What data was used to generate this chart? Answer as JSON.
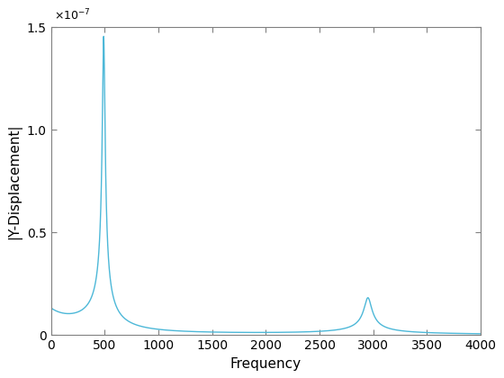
{
  "xlabel": "Frequency",
  "ylabel": "|Y-Displacement|",
  "xlim": [
    0,
    4000
  ],
  "ylim": [
    0,
    1.5e-07
  ],
  "line_color": "#4db8d8",
  "line_width": 1.0,
  "peak1_freq": 490,
  "peak1_amp": 1.45e-07,
  "peak1_damping": 0.025,
  "peak2_freq": 2950,
  "peak2_amp": 1.8e-08,
  "peak2_damping": 0.012,
  "baseline_amp": 5.5e-09,
  "background_color": "#ffffff",
  "tick_label_size": 10,
  "label_fontsize": 11,
  "figwidth": 5.6,
  "figheight": 4.2,
  "dpi": 100
}
